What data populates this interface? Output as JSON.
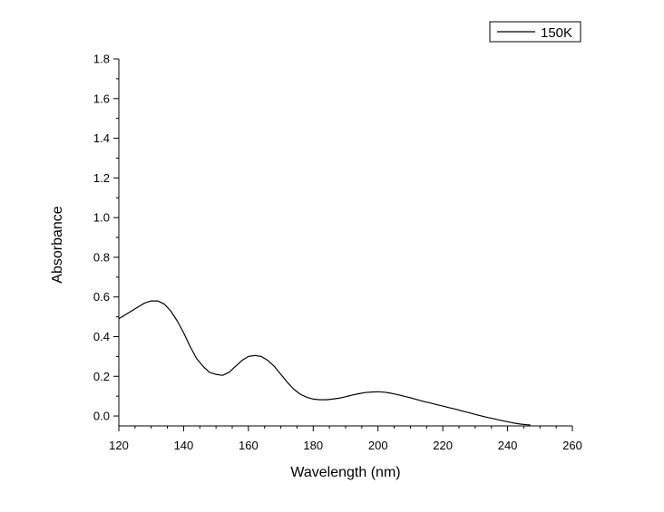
{
  "chart_data": {
    "type": "line",
    "xlabel": "Wavelength (nm)",
    "ylabel": "Absorbance",
    "xlim": [
      120,
      260
    ],
    "ylim": [
      -0.05,
      1.8
    ],
    "xticks": [
      "120",
      "140",
      "160",
      "180",
      "200",
      "220",
      "240",
      "260"
    ],
    "yticks": [
      "0.0",
      "0.2",
      "0.4",
      "0.6",
      "0.8",
      "1.0",
      "1.2",
      "1.4",
      "1.6",
      "1.8"
    ],
    "grid": false,
    "legend_position": "top-right",
    "series": [
      {
        "name": "150K",
        "color": "#000000",
        "x": [
          120,
          122,
          124,
          126,
          128,
          130,
          132,
          134,
          136,
          138,
          140,
          142,
          144,
          146,
          148,
          150,
          152,
          154,
          156,
          158,
          160,
          162,
          164,
          166,
          168,
          170,
          172,
          174,
          176,
          178,
          180,
          182,
          184,
          186,
          188,
          190,
          192,
          194,
          196,
          198,
          200,
          202,
          204,
          206,
          208,
          210,
          212,
          214,
          216,
          218,
          220,
          222,
          224,
          226,
          228,
          230,
          232,
          234,
          236,
          238,
          240,
          242,
          244,
          246,
          247
        ],
        "y": [
          0.49,
          0.51,
          0.53,
          0.55,
          0.57,
          0.58,
          0.58,
          0.565,
          0.53,
          0.48,
          0.42,
          0.35,
          0.29,
          0.25,
          0.22,
          0.21,
          0.205,
          0.22,
          0.25,
          0.28,
          0.3,
          0.305,
          0.3,
          0.28,
          0.25,
          0.21,
          0.17,
          0.135,
          0.11,
          0.095,
          0.085,
          0.082,
          0.082,
          0.085,
          0.09,
          0.097,
          0.105,
          0.112,
          0.118,
          0.121,
          0.122,
          0.12,
          0.115,
          0.108,
          0.1,
          0.092,
          0.083,
          0.074,
          0.066,
          0.058,
          0.05,
          0.042,
          0.034,
          0.025,
          0.017,
          0.008,
          0.0,
          -0.008,
          -0.015,
          -0.022,
          -0.029,
          -0.036,
          -0.041,
          -0.044,
          -0.045
        ]
      }
    ]
  }
}
